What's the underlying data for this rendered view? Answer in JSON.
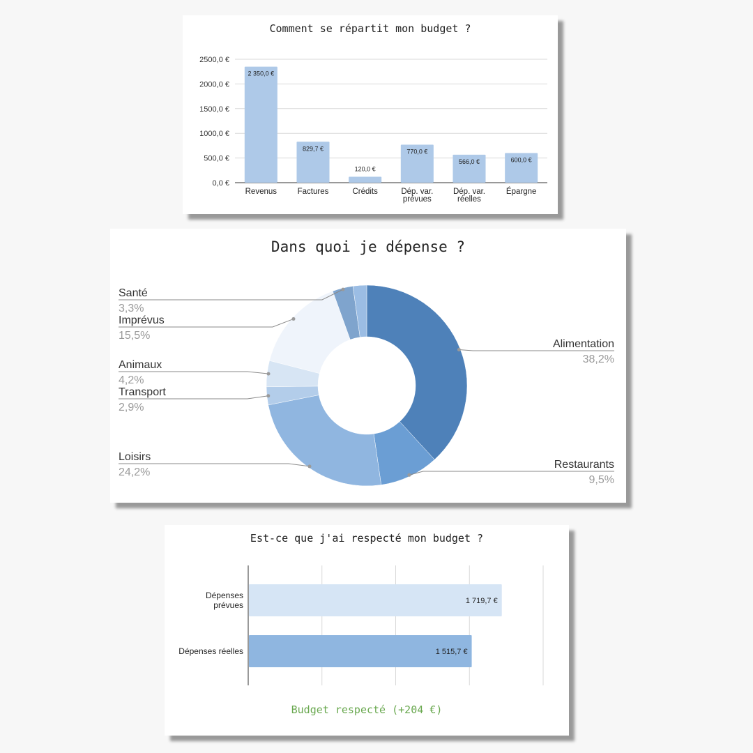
{
  "colors": {
    "bar": "#aec9e8",
    "planned": "#d6e5f5",
    "actual": "#8fb6e0",
    "status": "#69a84f",
    "pie": [
      "#4e81b9",
      "#6b9ed4",
      "#90b6e0",
      "#b3cdea",
      "#d7e5f4",
      "#eff4fb",
      "#7fa4cd",
      "#9bbde4"
    ]
  },
  "chart_data": [
    {
      "type": "bar",
      "title": "Comment se répartit mon budget ?",
      "categories": [
        [
          "Revenus"
        ],
        [
          "Factures"
        ],
        [
          "Crédits"
        ],
        [
          "Dép. var.",
          "prévues"
        ],
        [
          "Dép. var.",
          "réelles"
        ],
        [
          "Épargne"
        ]
      ],
      "values": [
        2350.0,
        829.7,
        120.0,
        770.0,
        566.0,
        600.0
      ],
      "data_labels": [
        "2 350,0 €",
        "829,7 €",
        "120,0 €",
        "770,0 €",
        "566,0 €",
        "600,0 €"
      ],
      "yticks": [
        0,
        500,
        1000,
        1500,
        2000,
        2500
      ],
      "ytick_labels": [
        "0,0 €",
        "500,0 €",
        "1000,0 €",
        "1500,0 €",
        "2000,0 €",
        "2500,0 €"
      ],
      "ylim": [
        0,
        2500
      ],
      "grid": true,
      "legend": "none"
    },
    {
      "type": "pie",
      "donut": true,
      "title": "Dans quoi je dépense ?",
      "labels": [
        "Alimentation",
        "Restaurants",
        "Loisirs",
        "Transport",
        "Animaux",
        "Imprévus",
        "Santé",
        ""
      ],
      "values": [
        38.2,
        9.5,
        24.2,
        2.9,
        4.2,
        15.5,
        3.3,
        2.2
      ],
      "value_labels": [
        "38,2%",
        "9,5%",
        "24,2%",
        "2,9%",
        "4,2%",
        "15,5%",
        "3,3%",
        ""
      ],
      "legend": "labels beside slices"
    },
    {
      "type": "bar",
      "orientation": "horizontal",
      "title": "Est-ce que j'ai respecté mon budget ?",
      "categories": [
        [
          "Dépenses",
          "prévues"
        ],
        [
          "Dépenses réelles"
        ]
      ],
      "values": [
        1719.7,
        1515.7
      ],
      "data_labels": [
        "1 719,7 €",
        "1 515,7 €"
      ],
      "xlim": [
        0,
        2000
      ],
      "grid": true,
      "status": "Budget respecté (+204 €)"
    }
  ]
}
